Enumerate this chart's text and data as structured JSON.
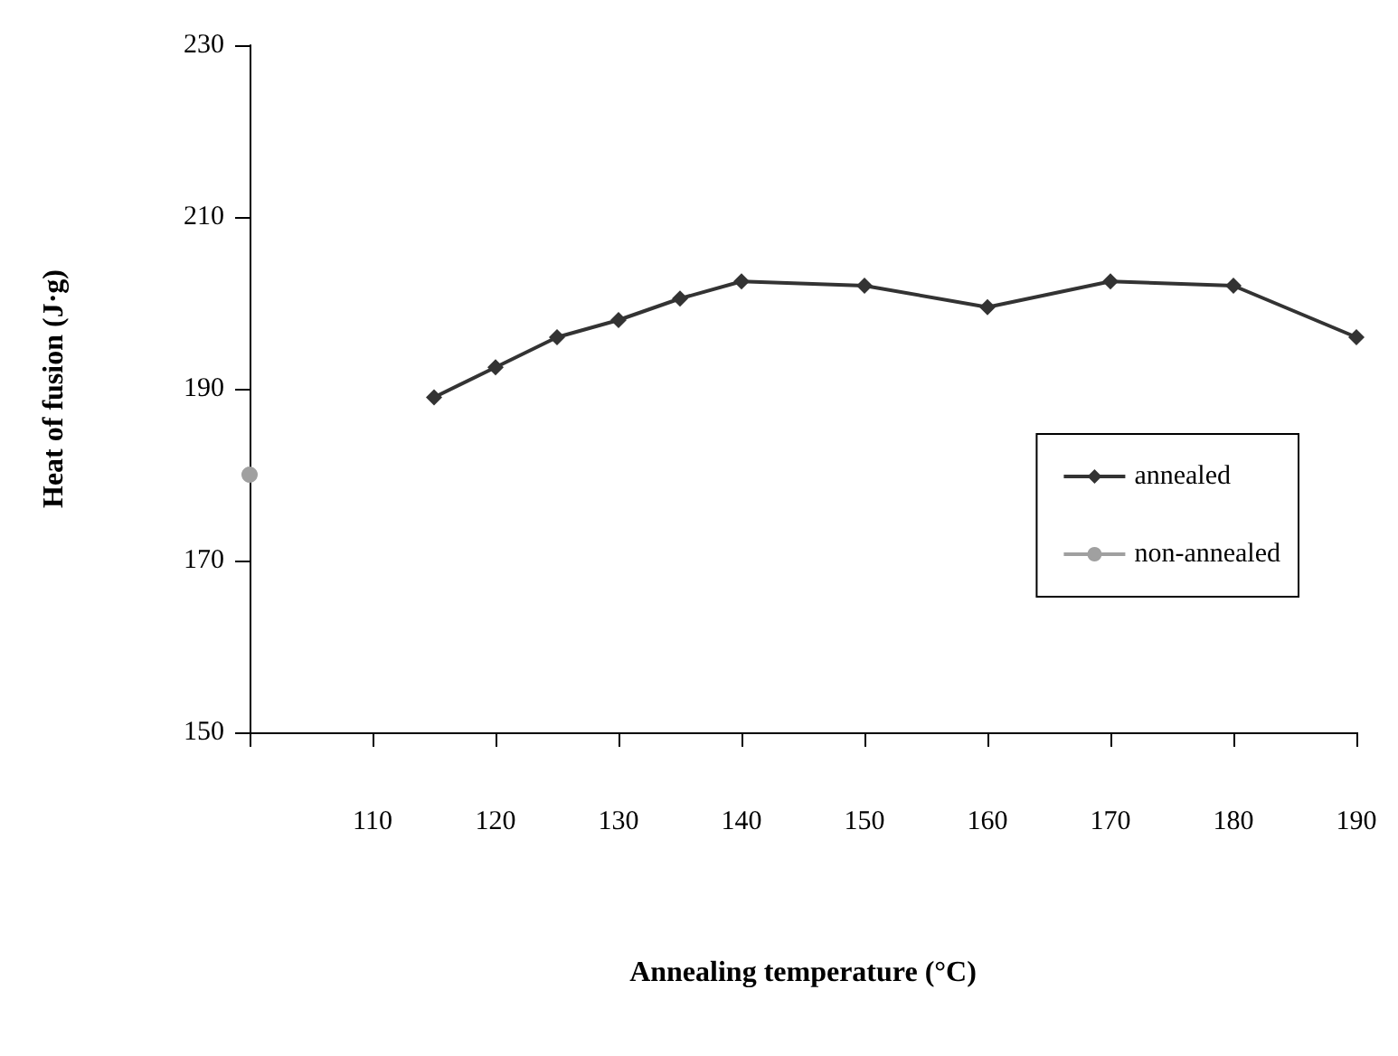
{
  "chart_data": {
    "type": "line",
    "xlabel": "Annealing temperature (°C)",
    "ylabel": "Heat of fusion (J·g)",
    "xlim": [
      100,
      190
    ],
    "xticks": [
      {
        "value": 100,
        "label": null
      },
      110,
      120,
      130,
      140,
      150,
      160,
      170,
      180,
      190
    ],
    "ylim": [
      150,
      230
    ],
    "yticks": [
      150,
      170,
      190,
      210,
      230
    ],
    "grid": false,
    "legend": "right",
    "line_style": "solid",
    "series": [
      {
        "name": "annealed",
        "color": "#333333",
        "marker": "diamond",
        "x": [
          115,
          120,
          125,
          130,
          135,
          140,
          150,
          160,
          170,
          180,
          190
        ],
        "values": [
          189,
          192.5,
          196,
          198,
          200.5,
          202.5,
          202,
          199.5,
          202.5,
          202,
          196
        ]
      },
      {
        "name": "non-annealed",
        "color": "#a0a0a0",
        "marker": "circle",
        "x": [
          100
        ],
        "values": [
          180
        ]
      }
    ]
  }
}
